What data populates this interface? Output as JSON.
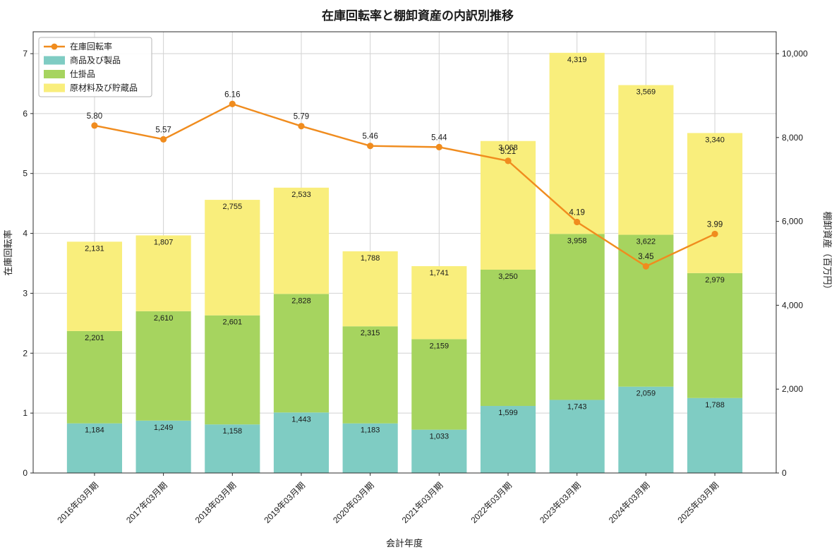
{
  "chart_data": {
    "type": "bar",
    "title": "在庫回転率と棚卸資産の内訳別推移",
    "xlabel": "会計年度",
    "ylabel_left": "在庫回転率",
    "ylabel_right": "棚卸資産（百万円）",
    "categories": [
      "2016年03月期",
      "2017年03月期",
      "2018年03月期",
      "2019年03月期",
      "2020年03月期",
      "2021年03月期",
      "2022年03月期",
      "2023年03月期",
      "2024年03月期",
      "2025年03月期"
    ],
    "series": [
      {
        "name": "商品及び製品",
        "color": "#7fccc3",
        "values": [
          1184,
          1249,
          1158,
          1443,
          1183,
          1033,
          1599,
          1743,
          2059,
          1788
        ],
        "labels": [
          "1,184",
          "1,249",
          "1,158",
          "1,443",
          "1,183",
          "1,033",
          "1,599",
          "1,743",
          "2,059",
          "1,788"
        ]
      },
      {
        "name": "仕掛品",
        "color": "#a6d45f",
        "values": [
          2201,
          2610,
          2601,
          2828,
          2315,
          2159,
          3250,
          3958,
          3622,
          2979
        ],
        "labels": [
          "2,201",
          "2,610",
          "2,601",
          "2,828",
          "2,315",
          "2,159",
          "3,250",
          "3,958",
          "3,622",
          "2,979"
        ]
      },
      {
        "name": "原材料及び貯蔵品",
        "color": "#f9ee7c",
        "values": [
          2131,
          1807,
          2755,
          2533,
          1788,
          1741,
          3068,
          4319,
          3569,
          3340
        ],
        "labels": [
          "2,131",
          "1,807",
          "2,755",
          "2,533",
          "1,788",
          "1,741",
          "3,068",
          "4,319",
          "3,569",
          "3,340"
        ]
      }
    ],
    "line_series": {
      "name": "在庫回転率",
      "color": "#f08c1e",
      "values": [
        5.8,
        5.57,
        6.16,
        5.79,
        5.46,
        5.44,
        5.21,
        4.19,
        3.45,
        3.99
      ],
      "labels": [
        "5.80",
        "5.57",
        "6.16",
        "5.79",
        "5.46",
        "5.44",
        "5.21",
        "4.19",
        "3.45",
        "3.99"
      ]
    },
    "axes": {
      "left_ticks": [
        0,
        1,
        2,
        3,
        4,
        5,
        6,
        7
      ],
      "left_tick_labels": [
        "0",
        "1",
        "2",
        "3",
        "4",
        "5",
        "6",
        "7"
      ],
      "left_ylim": [
        0,
        7
      ],
      "right_ticks": [
        0,
        2000,
        4000,
        6000,
        8000,
        10000
      ],
      "right_tick_labels": [
        "0",
        "2,000",
        "4,000",
        "6,000",
        "8,000",
        "10,000"
      ],
      "right_ylim": [
        0,
        10000
      ],
      "grid": true,
      "legend_position": "upper-left"
    }
  }
}
